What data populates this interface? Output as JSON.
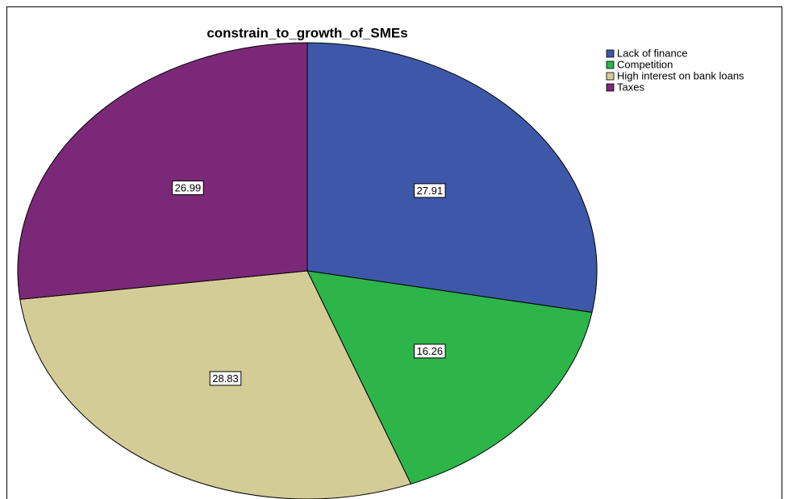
{
  "chart_data": {
    "type": "pie",
    "title": "constrain_to_growth_of_SMEs",
    "categories": [
      "Lack of finance",
      "Competition",
      "High interest on bank loans",
      "Taxes"
    ],
    "values": [
      27.91,
      16.26,
      28.83,
      26.99
    ],
    "colors": [
      "#3d58a8",
      "#2db54a",
      "#d4cc97",
      "#7b2878"
    ],
    "legend": "upper right"
  }
}
